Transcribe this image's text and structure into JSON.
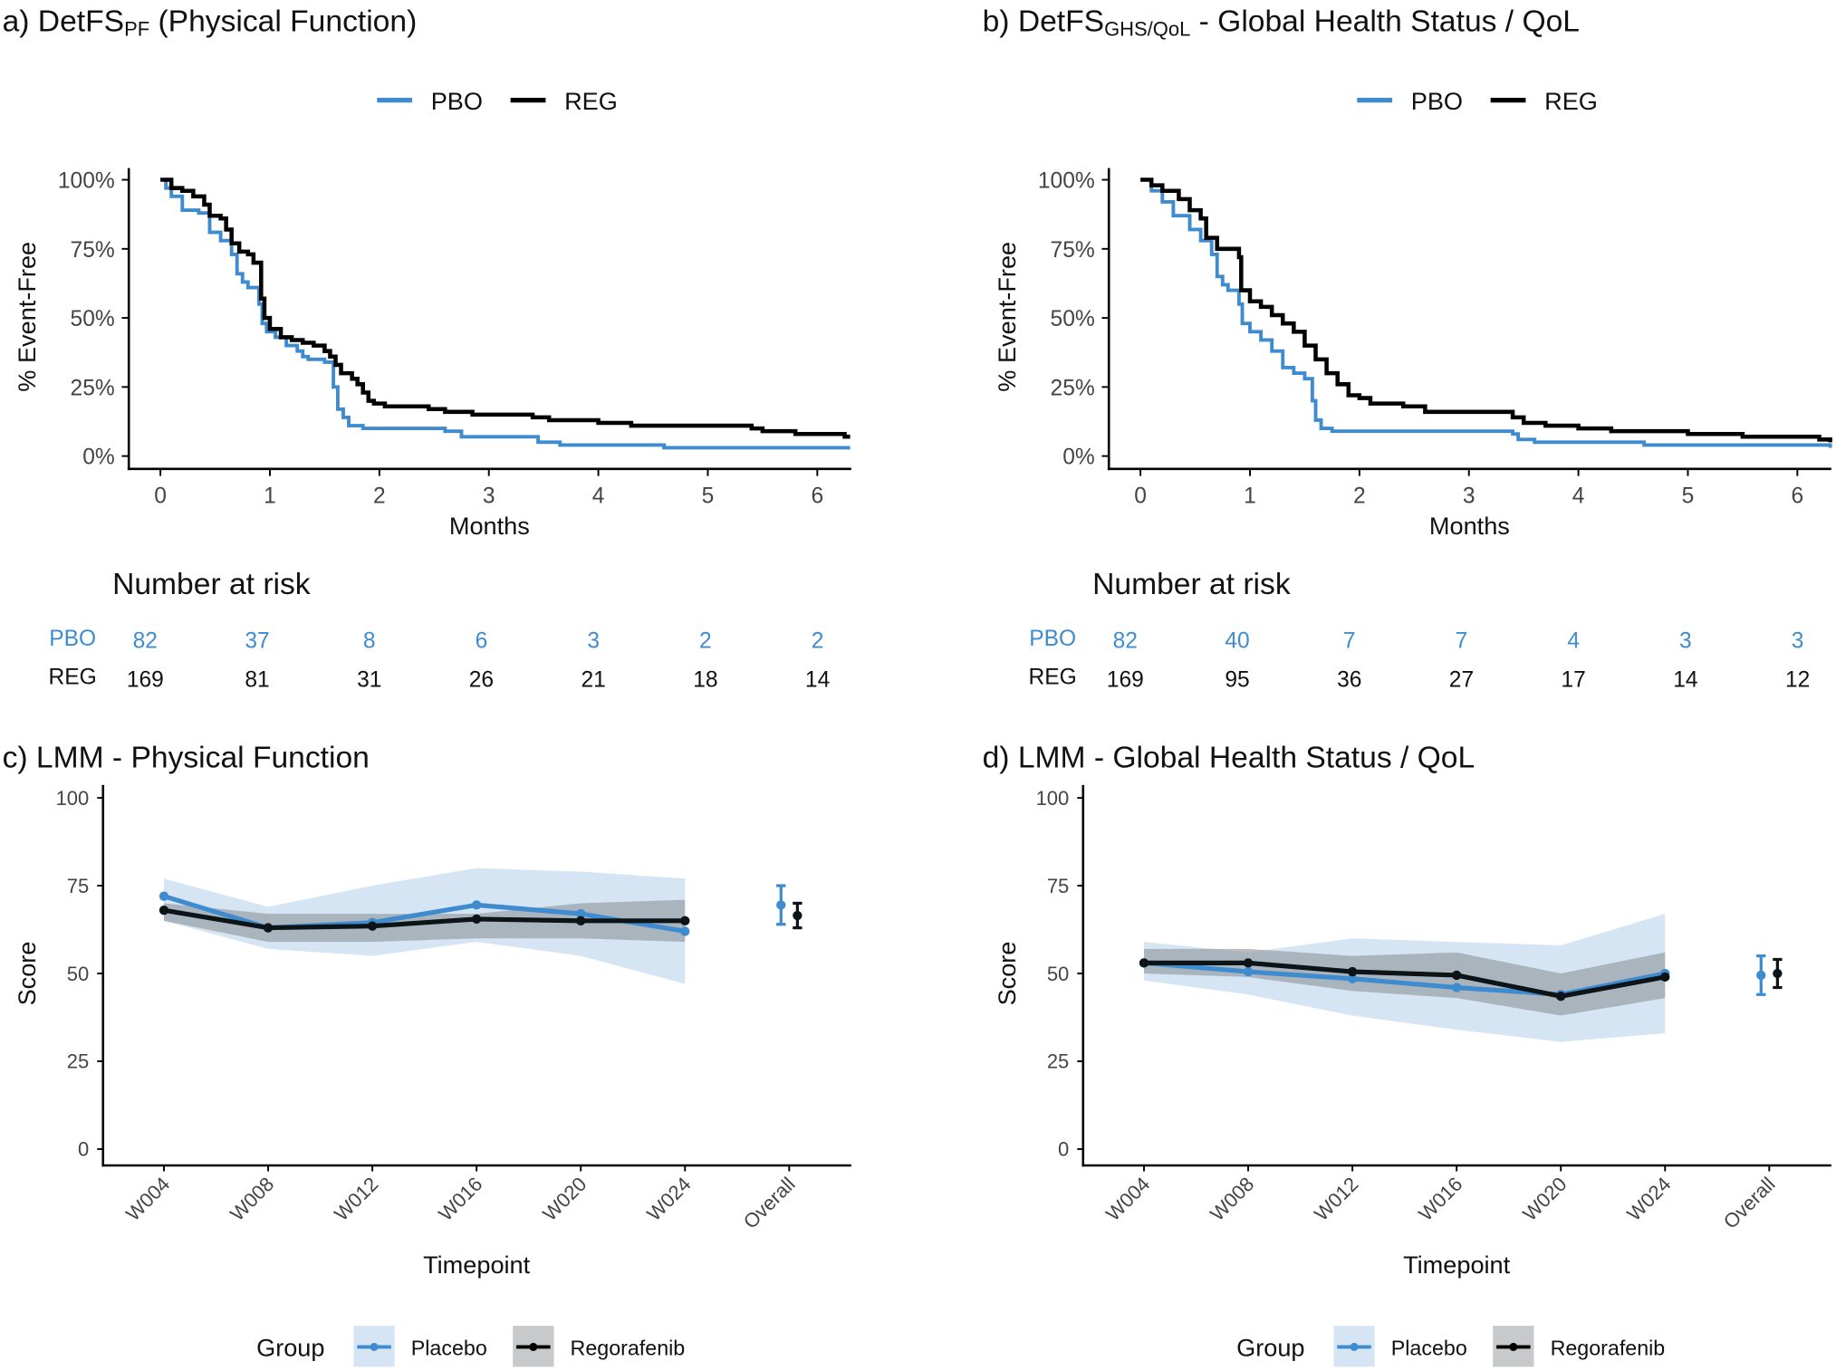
{
  "colors": {
    "pbo": "#3f8bcf",
    "reg": "#000000",
    "pbo_ribbon": "#d5e5f4",
    "reg_ribbon": "#8d9297"
  },
  "chart_data": [
    {
      "type": "line",
      "subtype": "kaplan-meier step",
      "title_prefix": "a) DetFS",
      "title_sub": "PF",
      "title_suffix": " (Physical Function)",
      "xlabel": "Months",
      "ylabel": "% Event-Free",
      "xlim": [
        0,
        6.3
      ],
      "ylim": [
        0,
        100
      ],
      "xticks": [
        "0",
        "1",
        "2",
        "3",
        "4",
        "5",
        "6"
      ],
      "yticks": [
        "0%",
        "25%",
        "50%",
        "75%",
        "100%"
      ],
      "legend": {
        "position": "top",
        "items": [
          "PBO",
          "REG"
        ]
      },
      "series": [
        {
          "name": "PBO",
          "points": [
            [
              0,
              100
            ],
            [
              0.05,
              97
            ],
            [
              0.1,
              94
            ],
            [
              0.2,
              89
            ],
            [
              0.35,
              88
            ],
            [
              0.45,
              81
            ],
            [
              0.55,
              78
            ],
            [
              0.65,
              73
            ],
            [
              0.7,
              66
            ],
            [
              0.75,
              63
            ],
            [
              0.8,
              61
            ],
            [
              0.9,
              55
            ],
            [
              0.93,
              48
            ],
            [
              0.97,
              45
            ],
            [
              1.05,
              43
            ],
            [
              1.15,
              40
            ],
            [
              1.25,
              38
            ],
            [
              1.3,
              36
            ],
            [
              1.35,
              35
            ],
            [
              1.5,
              34
            ],
            [
              1.58,
              25
            ],
            [
              1.62,
              17
            ],
            [
              1.67,
              14
            ],
            [
              1.72,
              11
            ],
            [
              1.85,
              10
            ],
            [
              2.6,
              9
            ],
            [
              2.75,
              7
            ],
            [
              3.45,
              5
            ],
            [
              3.65,
              4
            ],
            [
              4.6,
              3
            ],
            [
              6.3,
              3
            ]
          ]
        },
        {
          "name": "REG",
          "points": [
            [
              0,
              100
            ],
            [
              0.1,
              97
            ],
            [
              0.2,
              96
            ],
            [
              0.3,
              94
            ],
            [
              0.4,
              91
            ],
            [
              0.45,
              87
            ],
            [
              0.55,
              86
            ],
            [
              0.6,
              82
            ],
            [
              0.65,
              77
            ],
            [
              0.72,
              74
            ],
            [
              0.8,
              73
            ],
            [
              0.85,
              70
            ],
            [
              0.92,
              57
            ],
            [
              0.95,
              50
            ],
            [
              1.0,
              46
            ],
            [
              1.1,
              43
            ],
            [
              1.2,
              42
            ],
            [
              1.3,
              41
            ],
            [
              1.4,
              40
            ],
            [
              1.5,
              38
            ],
            [
              1.55,
              36
            ],
            [
              1.6,
              33
            ],
            [
              1.65,
              30
            ],
            [
              1.75,
              28
            ],
            [
              1.8,
              26
            ],
            [
              1.85,
              23
            ],
            [
              1.9,
              20
            ],
            [
              1.95,
              19
            ],
            [
              2.05,
              18
            ],
            [
              2.45,
              17
            ],
            [
              2.6,
              16
            ],
            [
              2.85,
              15
            ],
            [
              3.4,
              14
            ],
            [
              3.55,
              13
            ],
            [
              4.0,
              12
            ],
            [
              4.3,
              11
            ],
            [
              5.4,
              10
            ],
            [
              5.5,
              9
            ],
            [
              5.8,
              8
            ],
            [
              6.25,
              7
            ],
            [
              6.3,
              7
            ]
          ]
        }
      ],
      "risk_table": {
        "title": "Number at risk",
        "rows": [
          {
            "name": "PBO",
            "values": [
              "82",
              "37",
              "8",
              "6",
              "3",
              "2",
              "2"
            ]
          },
          {
            "name": "REG",
            "values": [
              "169",
              "81",
              "31",
              "26",
              "21",
              "18",
              "14"
            ]
          }
        ]
      }
    },
    {
      "type": "line",
      "subtype": "kaplan-meier step",
      "title_prefix": "b) DetFS",
      "title_sub": "GHS/QoL",
      "title_suffix": " - Global Health Status / QoL",
      "xlabel": "Months",
      "ylabel": "% Event-Free",
      "xlim": [
        0,
        6.3
      ],
      "ylim": [
        0,
        100
      ],
      "xticks": [
        "0",
        "1",
        "2",
        "3",
        "4",
        "5",
        "6"
      ],
      "yticks": [
        "0%",
        "25%",
        "50%",
        "75%",
        "100%"
      ],
      "legend": {
        "position": "top",
        "items": [
          "PBO",
          "REG"
        ]
      },
      "series": [
        {
          "name": "PBO",
          "points": [
            [
              0,
              100
            ],
            [
              0.1,
              96
            ],
            [
              0.2,
              92
            ],
            [
              0.3,
              87
            ],
            [
              0.45,
              82
            ],
            [
              0.55,
              78
            ],
            [
              0.65,
              73
            ],
            [
              0.7,
              65
            ],
            [
              0.75,
              62
            ],
            [
              0.8,
              60
            ],
            [
              0.9,
              55
            ],
            [
              0.93,
              48
            ],
            [
              1.0,
              45
            ],
            [
              1.1,
              42
            ],
            [
              1.2,
              38
            ],
            [
              1.3,
              32
            ],
            [
              1.4,
              30
            ],
            [
              1.5,
              28
            ],
            [
              1.57,
              20
            ],
            [
              1.6,
              13
            ],
            [
              1.65,
              10
            ],
            [
              1.75,
              9
            ],
            [
              3.4,
              8
            ],
            [
              3.45,
              6
            ],
            [
              3.6,
              5
            ],
            [
              4.6,
              4
            ],
            [
              6.3,
              3
            ]
          ]
        },
        {
          "name": "REG",
          "points": [
            [
              0,
              100
            ],
            [
              0.1,
              98
            ],
            [
              0.2,
              96
            ],
            [
              0.35,
              93
            ],
            [
              0.45,
              89
            ],
            [
              0.55,
              86
            ],
            [
              0.6,
              79
            ],
            [
              0.7,
              75
            ],
            [
              0.9,
              72
            ],
            [
              0.92,
              60
            ],
            [
              1.0,
              56
            ],
            [
              1.1,
              54
            ],
            [
              1.2,
              51
            ],
            [
              1.3,
              48
            ],
            [
              1.4,
              45
            ],
            [
              1.5,
              40
            ],
            [
              1.6,
              35
            ],
            [
              1.7,
              30
            ],
            [
              1.8,
              26
            ],
            [
              1.9,
              22
            ],
            [
              2.0,
              21
            ],
            [
              2.1,
              19
            ],
            [
              2.4,
              18
            ],
            [
              2.6,
              16
            ],
            [
              3.4,
              14
            ],
            [
              3.5,
              12
            ],
            [
              3.7,
              11
            ],
            [
              4.0,
              10
            ],
            [
              4.3,
              9
            ],
            [
              5.0,
              8
            ],
            [
              5.5,
              7
            ],
            [
              6.2,
              6
            ],
            [
              6.3,
              5
            ]
          ]
        }
      ],
      "risk_table": {
        "title": "Number at risk",
        "rows": [
          {
            "name": "PBO",
            "values": [
              "82",
              "40",
              "7",
              "7",
              "4",
              "3",
              "3"
            ]
          },
          {
            "name": "REG",
            "values": [
              "169",
              "95",
              "36",
              "27",
              "17",
              "14",
              "12"
            ]
          }
        ]
      }
    },
    {
      "type": "line",
      "subtype": "mean with confidence ribbon",
      "title": "c) LMM - Physical Function",
      "xlabel": "Timepoint",
      "ylabel": "Score",
      "ylim": [
        0,
        100
      ],
      "yticks": [
        "0",
        "25",
        "50",
        "75",
        "100"
      ],
      "categories": [
        "W004",
        "W008",
        "W012",
        "W016",
        "W020",
        "W024",
        "Overall"
      ],
      "legend": {
        "position": "bottom",
        "title": "Group",
        "items": [
          "Placebo",
          "Regorafenib"
        ]
      },
      "series": [
        {
          "name": "Placebo",
          "mean": [
            72,
            63,
            64.5,
            69.5,
            67,
            62
          ],
          "lower": [
            65,
            57,
            55,
            59,
            55,
            47
          ],
          "upper": [
            77,
            69,
            75,
            80,
            79,
            77
          ],
          "overall": {
            "mean": 69.5,
            "lower": 64,
            "upper": 75
          }
        },
        {
          "name": "Regorafenib",
          "mean": [
            68,
            63,
            63.5,
            65.5,
            65,
            65
          ],
          "lower": [
            65,
            59,
            59,
            60,
            60,
            59
          ],
          "upper": [
            70,
            67,
            67,
            67,
            70,
            71
          ],
          "overall": {
            "mean": 66.5,
            "lower": 63,
            "upper": 70
          }
        }
      ]
    },
    {
      "type": "line",
      "subtype": "mean with confidence ribbon",
      "title": "d) LMM - Global Health Status / QoL",
      "xlabel": "Timepoint",
      "ylabel": "Score",
      "ylim": [
        0,
        100
      ],
      "yticks": [
        "0",
        "25",
        "50",
        "75",
        "100"
      ],
      "categories": [
        "W004",
        "W008",
        "W012",
        "W016",
        "W020",
        "W024",
        "Overall"
      ],
      "legend": {
        "position": "bottom",
        "title": "Group",
        "items": [
          "Placebo",
          "Regorafenib"
        ]
      },
      "series": [
        {
          "name": "Placebo",
          "mean": [
            53,
            50.5,
            48.5,
            46,
            44,
            50
          ],
          "lower": [
            48,
            44,
            38,
            34,
            30.5,
            33
          ],
          "upper": [
            59,
            56,
            60,
            59,
            58,
            67
          ],
          "overall": {
            "mean": 49.5,
            "lower": 44,
            "upper": 55
          }
        },
        {
          "name": "Regorafenib",
          "mean": [
            53,
            53,
            50.5,
            49.5,
            43.5,
            49
          ],
          "lower": [
            50,
            49,
            45,
            43,
            38,
            43
          ],
          "upper": [
            57,
            57,
            55,
            56,
            50,
            56
          ],
          "overall": {
            "mean": 50,
            "lower": 46,
            "upper": 54
          }
        }
      ]
    }
  ]
}
